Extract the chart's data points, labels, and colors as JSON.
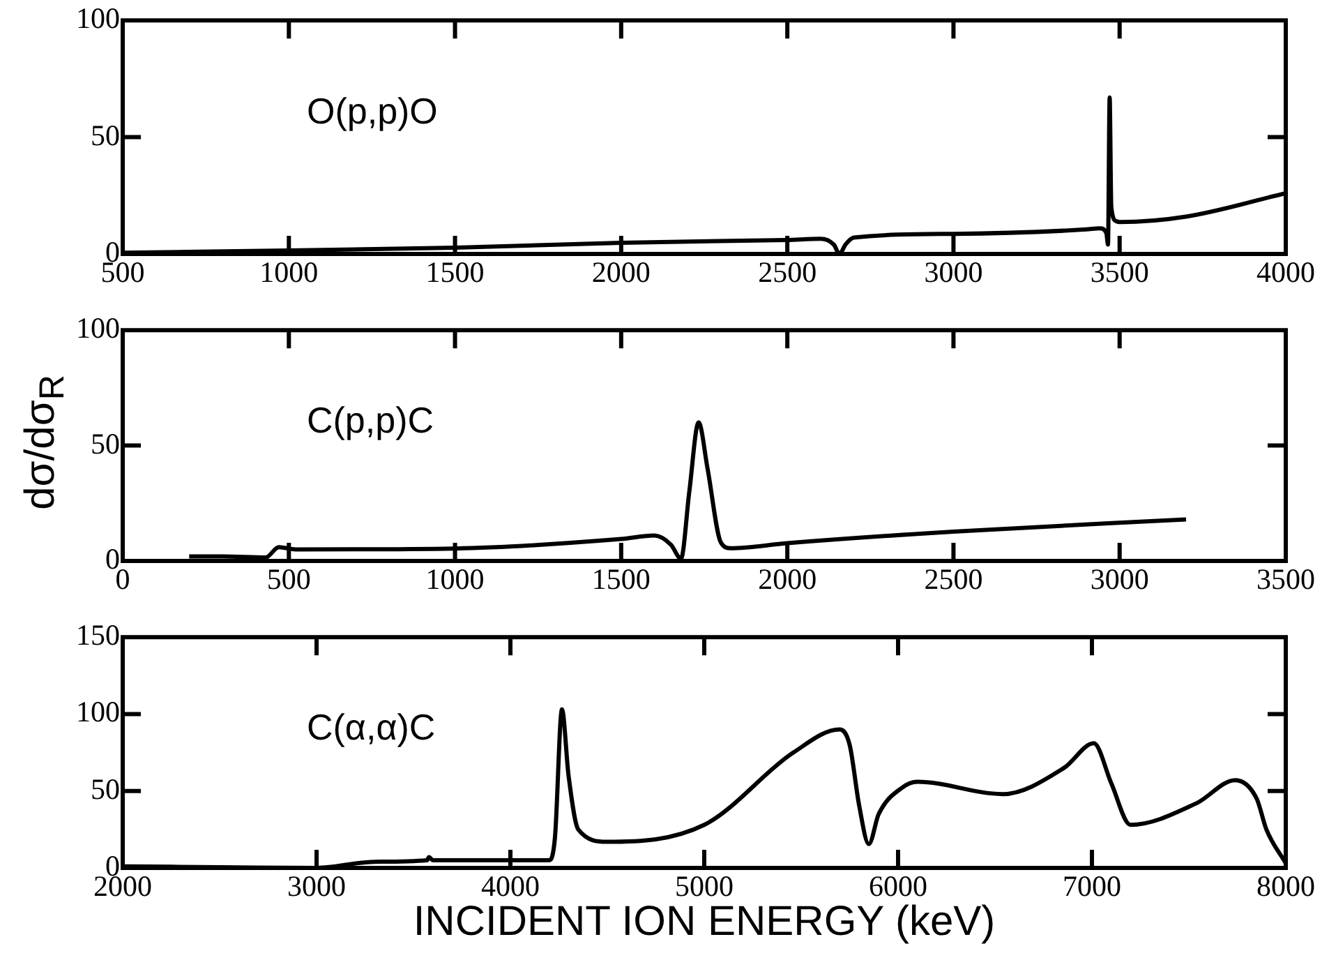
{
  "chart_data": [
    {
      "type": "line",
      "annotations": [
        "O(p,p)O"
      ],
      "xlim": [
        500,
        4000
      ],
      "xticks": [
        500,
        1000,
        1500,
        2000,
        2500,
        3000,
        3500,
        4000
      ],
      "ylim": [
        0,
        100
      ],
      "yticks": [
        0,
        50,
        100
      ],
      "grid": false,
      "legend": false,
      "marker": "none",
      "line_style": "solid",
      "series": [
        {
          "color": "#000000",
          "x": [
            500,
            1000,
            1500,
            2000,
            2500,
            2600,
            2640,
            2657,
            2675,
            2700,
            3000,
            3400,
            3440,
            3460,
            3465,
            3470,
            3475,
            3490,
            3500,
            3700,
            4000
          ],
          "values": [
            0.5,
            1.5,
            2.7,
            4.8,
            6,
            6.5,
            4,
            0,
            4,
            7,
            8.6,
            10.5,
            11,
            9,
            4,
            67,
            20,
            14,
            13.7,
            16,
            26
          ]
        }
      ]
    },
    {
      "type": "line",
      "ylabel": "dσ/dσ$_{R}$",
      "annotations": [
        "C(p,p)C"
      ],
      "xlim": [
        0,
        3500
      ],
      "xticks": [
        0,
        500,
        1000,
        1500,
        2000,
        2500,
        3000,
        3500
      ],
      "ylim": [
        0,
        100
      ],
      "yticks": [
        0,
        50,
        100
      ],
      "grid": false,
      "legend": false,
      "marker": "none",
      "line_style": "solid",
      "series": [
        {
          "color": "#000000",
          "x": [
            200,
            300,
            430,
            470,
            520,
            1000,
            1500,
            1600,
            1650,
            1680,
            1705,
            1733,
            1760,
            1800,
            1830,
            2000,
            2500,
            3200
          ],
          "values": [
            2,
            2,
            1.5,
            6,
            5,
            5.4,
            9.5,
            11,
            7,
            1,
            30,
            60,
            40,
            8,
            5.5,
            7.7,
            12.7,
            18
          ]
        }
      ]
    },
    {
      "type": "line",
      "xlabel": "INCIDENT ION ENERGY (keV)",
      "annotations": [
        "C(α,α)C"
      ],
      "xlim": [
        2000,
        8000
      ],
      "xticks": [
        2000,
        3000,
        4000,
        5000,
        6000,
        7000,
        8000
      ],
      "ylim": [
        0,
        150
      ],
      "yticks": [
        0,
        50,
        100,
        150
      ],
      "grid": false,
      "legend": false,
      "marker": "none",
      "line_style": "solid",
      "series": [
        {
          "color": "#000000",
          "x": [
            2000,
            2500,
            3000,
            3300,
            3570,
            3580,
            3600,
            4000,
            4200,
            4230,
            4266,
            4300,
            4350,
            4500,
            5000,
            5460,
            5698,
            5750,
            5800,
            5849,
            5900,
            6019,
            6100,
            6540,
            6856,
            7010,
            7100,
            7199,
            7539,
            7739,
            7850,
            7900,
            8000
          ],
          "values": [
            1,
            0.5,
            0,
            4,
            5,
            7,
            5,
            5,
            5,
            20,
            103,
            60,
            25,
            17,
            28,
            75,
            90,
            80,
            40,
            15.5,
            35,
            52,
            56,
            48,
            65,
            81,
            55,
            28,
            42,
            57,
            45,
            25,
            3
          ]
        }
      ]
    }
  ]
}
